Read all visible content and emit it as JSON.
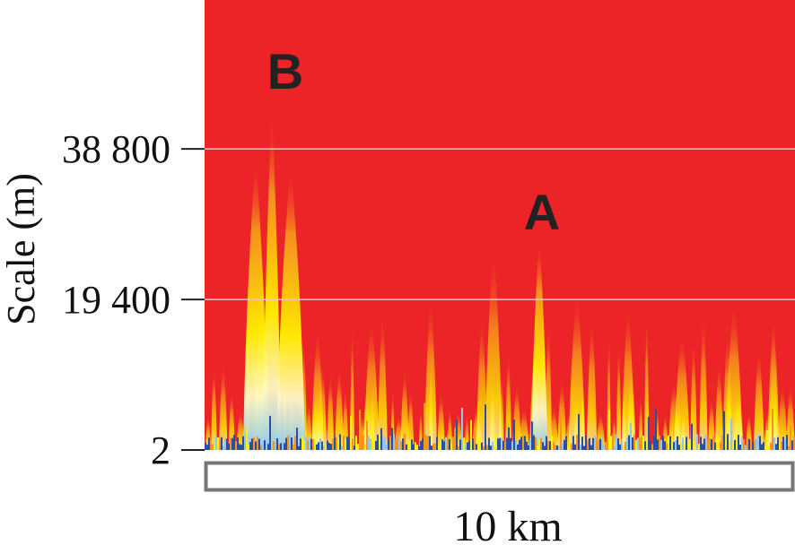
{
  "chart_data": {
    "type": "heatmap",
    "title": "",
    "xlabel": "",
    "ylabel": "Scale (m)",
    "y_ticks": [
      {
        "value": 2,
        "label": "2"
      },
      {
        "value": 19400,
        "label": "19 400"
      },
      {
        "value": 38800,
        "label": "38 800"
      }
    ],
    "ylim": [
      2,
      58000
    ],
    "grid": true,
    "colors": {
      "background": "#ec2327",
      "orange": "#f7941d",
      "yellow": "#fff200",
      "pale": "#fff9c8",
      "light_blue": "#8fc8e8",
      "blue": "#2b4fa8",
      "gridline": "#f5c0c0",
      "scalebar_border": "#777777"
    },
    "annotations": [
      {
        "label": "B",
        "peak_scale_m": 44000
      },
      {
        "label": "A",
        "peak_scale_m": 27500
      }
    ],
    "scale_bar": {
      "label": "10 km"
    }
  }
}
